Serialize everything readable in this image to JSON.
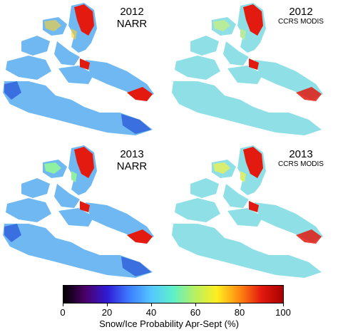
{
  "panels": [
    {
      "year": "2012",
      "source": "NARR",
      "id": "narr-2012"
    },
    {
      "year": "2012",
      "source": "CCRS MODIS",
      "id": "modis-2012"
    },
    {
      "year": "2013",
      "source": "NARR",
      "id": "narr-2013"
    },
    {
      "year": "2013",
      "source": "CCRS MODIS",
      "id": "modis-2013"
    }
  ],
  "colorbar": {
    "label": "Snow/Ice Probability Apr-Sept (%)",
    "ticks": [
      "0",
      "20",
      "40",
      "60",
      "80",
      "100"
    ],
    "min": 0,
    "max": 100,
    "colormap": [
      "#000000",
      "#4b0068",
      "#2f1bd6",
      "#3c7dff",
      "#54c7ff",
      "#5ef0c8",
      "#b8f060",
      "#ffee20",
      "#ff8a10",
      "#e21a10",
      "#a80000"
    ]
  },
  "colors": {
    "narr_base": "#6fb8f2",
    "narr_low": "#3a6fe0",
    "modis_base": "#8ee0e6",
    "modis_green": "#b8ec9a",
    "high": "#e21a10",
    "mid": "#ffd02a"
  }
}
